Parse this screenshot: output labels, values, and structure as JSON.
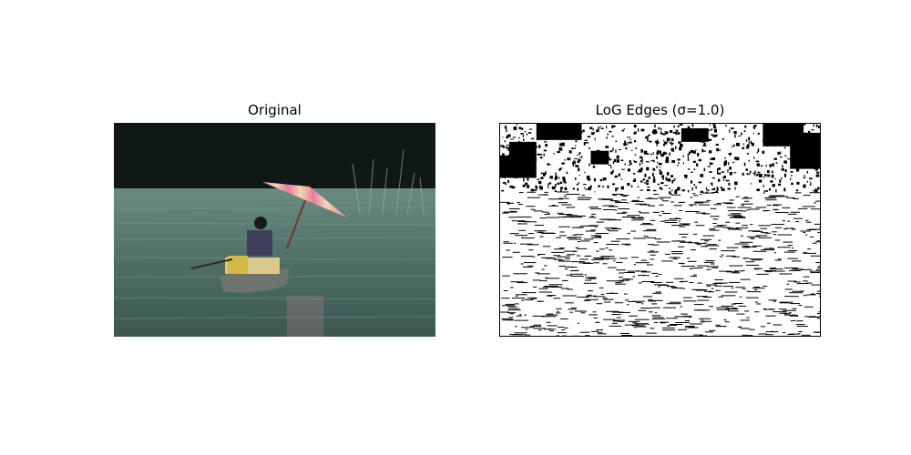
{
  "figure": {
    "panels": [
      {
        "title": "Original",
        "image": "photo of a person paddling a small boat on a green river, holding a pink-and-white striped paper umbrella, dark treeline in the background"
      },
      {
        "title": "LoG Edges (σ=1.0)",
        "image": "black and white Laplacian-of-Gaussian edge map of the same photo"
      }
    ]
  },
  "colors": {
    "water": "#4c6b62",
    "sky_dark": "#0f1816",
    "umbrella_pink": "#e87f9a",
    "umbrella_cream": "#f0d6b8",
    "edges": "#000000"
  }
}
